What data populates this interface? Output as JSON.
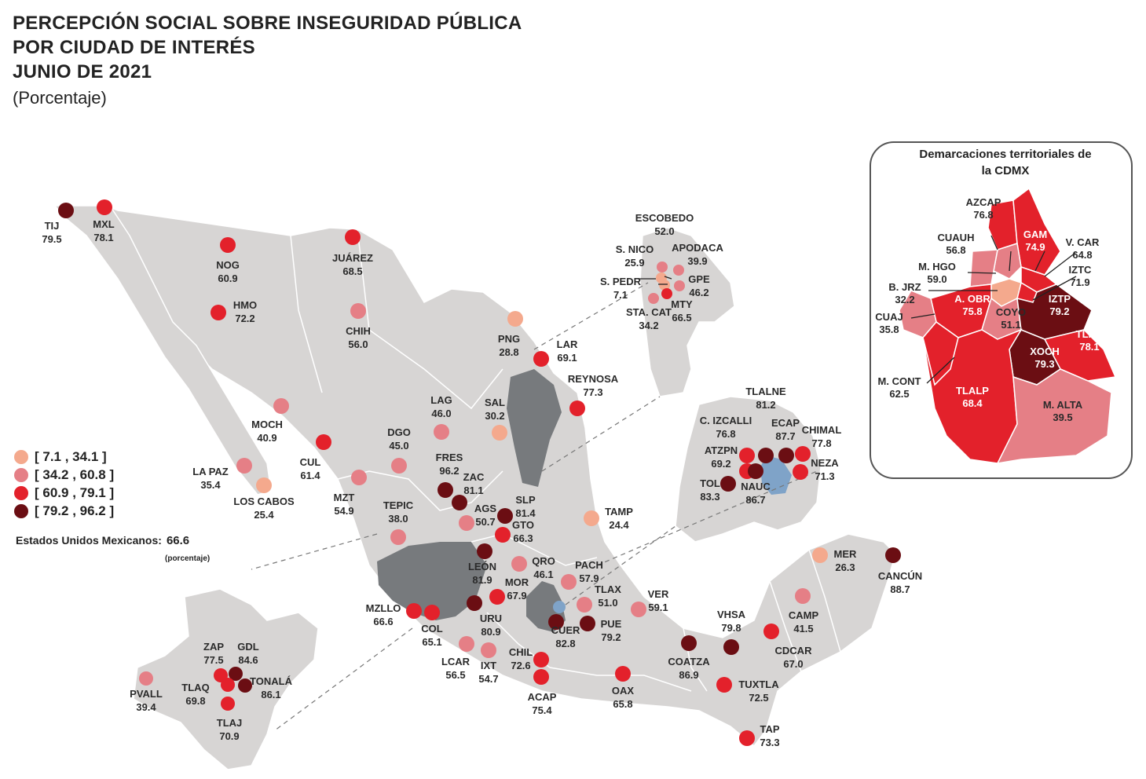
{
  "title_lines": [
    "PERCEPCIÓN SOCIAL SOBRE INSEGURIDAD PÚBLICA",
    "POR CIUDAD DE INTERÉS",
    "JUNIO DE 2021"
  ],
  "units": "(Porcentaje)",
  "legend": [
    {
      "label": "[  7.1 , 34.1 ]",
      "color": "#f4a98d"
    },
    {
      "label": "[ 34.2 , 60.8 ]",
      "color": "#e57f86"
    },
    {
      "label": "[ 60.9 , 79.1 ]",
      "color": "#e3212b"
    },
    {
      "label": "[ 79.2 , 96.2 ]",
      "color": "#6b0e13"
    }
  ],
  "national": {
    "label": "Estados Unidos Mexicanos:",
    "value": "66.6",
    "sub": "(porcentaje)"
  },
  "cdmx": {
    "title_lines": [
      "Demarcaciones territoriales de",
      "la CDMX"
    ],
    "districts": [
      {
        "name": "AZCAP",
        "value": "76.8",
        "color": "#e3212b"
      },
      {
        "name": "GAM",
        "value": "74.9",
        "color": "#e3212b"
      },
      {
        "name": "CUAUH",
        "value": "56.8",
        "color": "#e57f86"
      },
      {
        "name": "V. CAR",
        "value": "64.8",
        "color": "#e3212b"
      },
      {
        "name": "M. HGO",
        "value": "59.0",
        "color": "#e57f86"
      },
      {
        "name": "IZTC",
        "value": "71.9",
        "color": "#e3212b"
      },
      {
        "name": "B. JRZ",
        "value": "32.2",
        "color": "#f4a98d"
      },
      {
        "name": "A. OBR",
        "value": "75.8",
        "color": "#e3212b"
      },
      {
        "name": "COYO",
        "value": "51.1",
        "color": "#e57f86"
      },
      {
        "name": "IZTP",
        "value": "79.2",
        "color": "#6b0e13"
      },
      {
        "name": "CUAJ",
        "value": "35.8",
        "color": "#e57f86"
      },
      {
        "name": "TLHC",
        "value": "78.1",
        "color": "#e3212b"
      },
      {
        "name": "XOCH",
        "value": "79.3",
        "color": "#6b0e13"
      },
      {
        "name": "M. CONT",
        "value": "62.5",
        "color": "#e3212b"
      },
      {
        "name": "TLALP",
        "value": "68.4",
        "color": "#e3212b"
      },
      {
        "name": "M. ALTA",
        "value": "39.5",
        "color": "#e57f86"
      }
    ]
  },
  "cities": [
    {
      "name": "TIJ",
      "value": "79.5",
      "color": "#6b0e13"
    },
    {
      "name": "MXL",
      "value": "78.1",
      "color": "#e3212b"
    },
    {
      "name": "NOG",
      "value": "60.9",
      "color": "#e3212b"
    },
    {
      "name": "JUÁREZ",
      "value": "68.5",
      "color": "#e3212b"
    },
    {
      "name": "HMO",
      "value": "72.2",
      "color": "#e3212b"
    },
    {
      "name": "CHIH",
      "value": "56.0",
      "color": "#e57f86"
    },
    {
      "name": "PNG",
      "value": "28.8",
      "color": "#f4a98d"
    },
    {
      "name": "LAR",
      "value": "69.1",
      "color": "#e3212b"
    },
    {
      "name": "REYNOSA",
      "value": "77.3",
      "color": "#e3212b"
    },
    {
      "name": "MOCH",
      "value": "40.9",
      "color": "#e57f86"
    },
    {
      "name": "LAG",
      "value": "46.0",
      "color": "#e57f86"
    },
    {
      "name": "SAL",
      "value": "30.2",
      "color": "#f4a98d"
    },
    {
      "name": "DGO",
      "value": "45.0",
      "color": "#e57f86"
    },
    {
      "name": "CUL",
      "value": "61.4",
      "color": "#e3212b"
    },
    {
      "name": "LA PAZ",
      "value": "35.4",
      "color": "#e57f86"
    },
    {
      "name": "LOS CABOS",
      "value": "25.4",
      "color": "#f4a98d"
    },
    {
      "name": "MZT",
      "value": "54.9",
      "color": "#e57f86"
    },
    {
      "name": "FRES",
      "value": "96.2",
      "color": "#6b0e13"
    },
    {
      "name": "ZAC",
      "value": "81.1",
      "color": "#6b0e13"
    },
    {
      "name": "AGS",
      "value": "50.7",
      "color": "#e57f86"
    },
    {
      "name": "SLP",
      "value": "81.4",
      "color": "#6b0e13"
    },
    {
      "name": "TAMP",
      "value": "24.4",
      "color": "#f4a98d"
    },
    {
      "name": "TEPIC",
      "value": "38.0",
      "color": "#e57f86"
    },
    {
      "name": "GTO",
      "value": "66.3",
      "color": "#e3212b"
    },
    {
      "name": "LEÓN",
      "value": "81.9",
      "color": "#6b0e13"
    },
    {
      "name": "QRO",
      "value": "46.1",
      "color": "#e57f86"
    },
    {
      "name": "PACH",
      "value": "57.9",
      "color": "#e57f86"
    },
    {
      "name": "MOR",
      "value": "67.9",
      "color": "#e3212b"
    },
    {
      "name": "TLAX",
      "value": "51.0",
      "color": "#e57f86"
    },
    {
      "name": "VER",
      "value": "59.1",
      "color": "#e57f86"
    },
    {
      "name": "MZLLO",
      "value": "66.6",
      "color": "#e3212b"
    },
    {
      "name": "COL",
      "value": "65.1",
      "color": "#e3212b"
    },
    {
      "name": "URU",
      "value": "80.9",
      "color": "#6b0e13"
    },
    {
      "name": "CUER",
      "value": "82.8",
      "color": "#6b0e13"
    },
    {
      "name": "PUE",
      "value": "79.2",
      "color": "#6b0e13"
    },
    {
      "name": "LCAR",
      "value": "56.5",
      "color": "#e57f86"
    },
    {
      "name": "IXT",
      "value": "54.7",
      "color": "#e57f86"
    },
    {
      "name": "CHIL",
      "value": "72.6",
      "color": "#e3212b"
    },
    {
      "name": "ACAP",
      "value": "75.4",
      "color": "#e3212b"
    },
    {
      "name": "OAX",
      "value": "65.8",
      "color": "#e3212b"
    },
    {
      "name": "COATZA",
      "value": "86.9",
      "color": "#6b0e13"
    },
    {
      "name": "VHSA",
      "value": "79.8",
      "color": "#6b0e13"
    },
    {
      "name": "CDCAR",
      "value": "67.0",
      "color": "#e3212b"
    },
    {
      "name": "CAMP",
      "value": "41.5",
      "color": "#e57f86"
    },
    {
      "name": "MER",
      "value": "26.3",
      "color": "#f4a98d"
    },
    {
      "name": "CANCÚN",
      "value": "88.7",
      "color": "#6b0e13"
    },
    {
      "name": "TUXTLA",
      "value": "72.5",
      "color": "#e3212b"
    },
    {
      "name": "TAP",
      "value": "73.3",
      "color": "#e3212b"
    }
  ],
  "monterrey_inset": [
    {
      "name": "ESCOBEDO",
      "value": "52.0",
      "color": "#e57f86"
    },
    {
      "name": "S. NICO",
      "value": "25.9",
      "color": "#f4a98d"
    },
    {
      "name": "APODACA",
      "value": "39.9",
      "color": "#e57f86"
    },
    {
      "name": "S. PEDR",
      "value": "7.1",
      "color": "#f4a98d"
    },
    {
      "name": "GPE",
      "value": "46.2",
      "color": "#e57f86"
    },
    {
      "name": "STA. CAT",
      "value": "34.2",
      "color": "#e57f86"
    },
    {
      "name": "MTY",
      "value": "66.5",
      "color": "#e3212b"
    }
  ],
  "mexico_inset": [
    {
      "name": "TLALNE",
      "value": "81.2",
      "color": "#6b0e13"
    },
    {
      "name": "C. IZCALLI",
      "value": "76.8",
      "color": "#e3212b"
    },
    {
      "name": "ECAP",
      "value": "87.7",
      "color": "#6b0e13"
    },
    {
      "name": "CHIMAL",
      "value": "77.8",
      "color": "#e3212b"
    },
    {
      "name": "ATZPN",
      "value": "69.2",
      "color": "#e3212b"
    },
    {
      "name": "NEZA",
      "value": "71.3",
      "color": "#e3212b"
    },
    {
      "name": "TOL",
      "value": "83.3",
      "color": "#6b0e13"
    },
    {
      "name": "NAUC",
      "value": "86.7",
      "color": "#6b0e13"
    }
  ],
  "guadalajara_inset": [
    {
      "name": "ZAP",
      "value": "77.5",
      "color": "#e3212b"
    },
    {
      "name": "GDL",
      "value": "84.6",
      "color": "#6b0e13"
    },
    {
      "name": "PVALL",
      "value": "39.4",
      "color": "#e57f86"
    },
    {
      "name": "TLAQ",
      "value": "69.8",
      "color": "#e3212b"
    },
    {
      "name": "TONALÁ",
      "value": "86.1",
      "color": "#6b0e13"
    },
    {
      "name": "TLAJ",
      "value": "70.9",
      "color": "#e3212b"
    }
  ]
}
